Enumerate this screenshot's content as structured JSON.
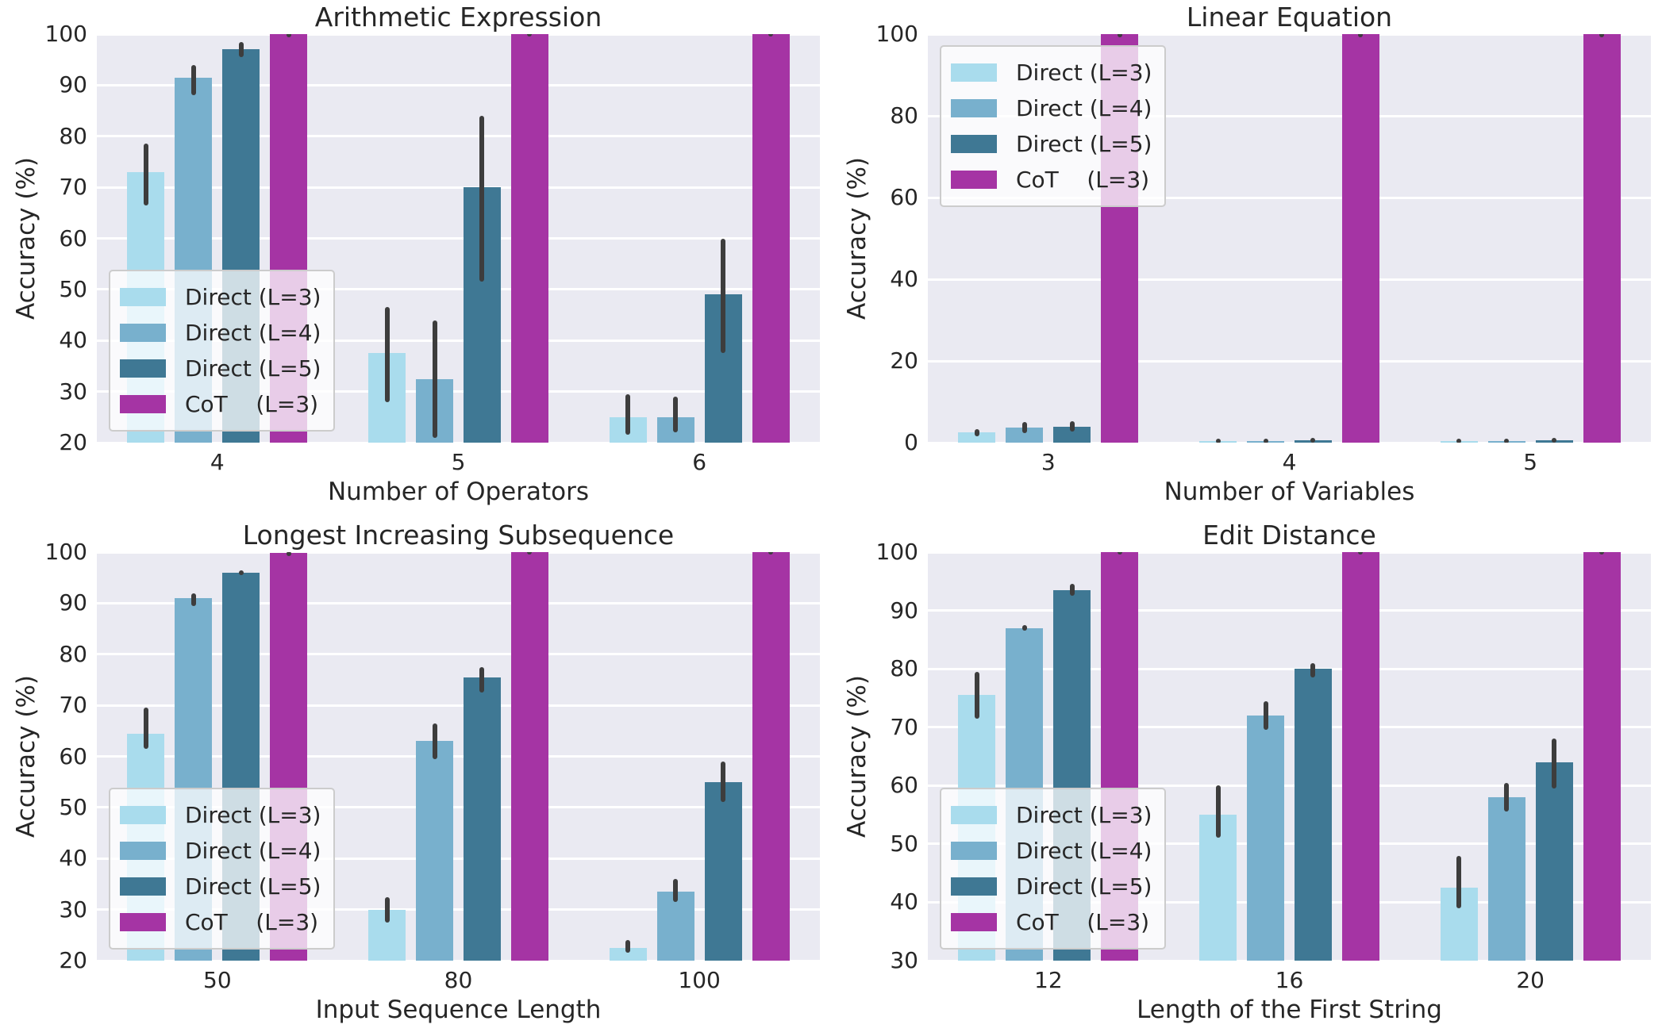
{
  "figure": {
    "background_color": "#ffffff",
    "plot_background_color": "#eaeaf2",
    "grid_color": "#ffffff",
    "text_color": "#262626",
    "errorbar_color": "#3d3d3d"
  },
  "legend": {
    "entries": [
      {
        "label": "Direct (L=3)",
        "color": "#a9dced"
      },
      {
        "label": "Direct (L=4)",
        "color": "#78b0cd"
      },
      {
        "label": "Direct (L=5)",
        "color": "#3f7894"
      },
      {
        "label": "CoT    (L=3)",
        "color": "#a534a4"
      }
    ]
  },
  "chart_data": [
    {
      "type": "bar",
      "title": "Arithmetic Expression",
      "xlabel": "Number of Operators",
      "ylabel": "Accuracy (%)",
      "categories": [
        "4",
        "5",
        "6"
      ],
      "ylim": [
        20,
        100
      ],
      "yticks": [
        20,
        30,
        40,
        50,
        60,
        70,
        80,
        90,
        100
      ],
      "grid": true,
      "legend_position": "lower-left",
      "series": [
        {
          "name": "Direct (L=3)",
          "color": "#a9dced",
          "values": [
            73,
            37.5,
            25
          ],
          "err": [
            [
              66.5,
              78.5
            ],
            [
              28,
              46.5
            ],
            [
              21.5,
              29.5
            ]
          ]
        },
        {
          "name": "Direct (L=4)",
          "color": "#78b0cd",
          "values": [
            91.5,
            32.5,
            25
          ],
          "err": [
            [
              88,
              94
            ],
            [
              21,
              44
            ],
            [
              22,
              29
            ]
          ]
        },
        {
          "name": "Direct (L=5)",
          "color": "#3f7894",
          "values": [
            97,
            70,
            49
          ],
          "err": [
            [
              95.5,
              98.5
            ],
            [
              51.5,
              84
            ],
            [
              37.5,
              60
            ]
          ]
        },
        {
          "name": "CoT    (L=3)",
          "color": "#a534a4",
          "values": [
            100,
            100,
            100
          ],
          "err": [
            [
              99.6,
              100
            ],
            [
              99.9,
              100
            ],
            [
              99.9,
              100
            ]
          ]
        }
      ]
    },
    {
      "type": "bar",
      "title": "Linear Equation",
      "xlabel": "Number of Variables",
      "ylabel": "Accuracy (%)",
      "categories": [
        "3",
        "4",
        "5"
      ],
      "ylim": [
        0,
        100
      ],
      "yticks": [
        0,
        20,
        40,
        60,
        80,
        100
      ],
      "grid": true,
      "legend_position": "upper-left",
      "series": [
        {
          "name": "Direct (L=3)",
          "color": "#a9dced",
          "values": [
            2.5,
            0.3,
            0.3
          ],
          "err": [
            [
              1.5,
              3.3
            ],
            [
              0.1,
              0.6
            ],
            [
              0.1,
              0.6
            ]
          ]
        },
        {
          "name": "Direct (L=4)",
          "color": "#78b0cd",
          "values": [
            3.6,
            0.3,
            0.3
          ],
          "err": [
            [
              2.4,
              5.1
            ],
            [
              0.1,
              0.6
            ],
            [
              0.1,
              0.6
            ]
          ]
        },
        {
          "name": "Direct (L=5)",
          "color": "#3f7894",
          "values": [
            3.9,
            0.5,
            0.5
          ],
          "err": [
            [
              2.8,
              5.3
            ],
            [
              0.2,
              0.9
            ],
            [
              0.2,
              0.9
            ]
          ]
        },
        {
          "name": "CoT    (L=3)",
          "color": "#a534a4",
          "values": [
            100,
            100,
            100
          ],
          "err": [
            [
              99.8,
              100
            ],
            [
              99.8,
              100
            ],
            [
              99.8,
              100
            ]
          ]
        }
      ]
    },
    {
      "type": "bar",
      "title": "Longest Increasing Subsequence",
      "xlabel": "Input Sequence Length",
      "ylabel": "Accuracy (%)",
      "categories": [
        "50",
        "80",
        "100"
      ],
      "ylim": [
        20,
        100
      ],
      "yticks": [
        20,
        30,
        40,
        50,
        60,
        70,
        80,
        90,
        100
      ],
      "grid": true,
      "legend_position": "lower-left",
      "series": [
        {
          "name": "Direct (L=3)",
          "color": "#a9dced",
          "values": [
            64.5,
            30,
            22.5
          ],
          "err": [
            [
              61.5,
              69.5
            ],
            [
              27.5,
              32.5
            ],
            [
              21.5,
              24
            ]
          ]
        },
        {
          "name": "Direct (L=4)",
          "color": "#78b0cd",
          "values": [
            91,
            63,
            33.5
          ],
          "err": [
            [
              89.5,
              92
            ],
            [
              59.5,
              66.5
            ],
            [
              31.5,
              36
            ]
          ]
        },
        {
          "name": "Direct (L=5)",
          "color": "#3f7894",
          "values": [
            96,
            75.5,
            55
          ],
          "err": [
            [
              95.5,
              96.5
            ],
            [
              72.5,
              77.5
            ],
            [
              51,
              59
            ]
          ]
        },
        {
          "name": "CoT    (L=3)",
          "color": "#a534a4",
          "values": [
            99.8,
            100,
            100
          ],
          "err": [
            [
              99.4,
              100
            ],
            [
              99.9,
              100
            ],
            [
              99.9,
              100
            ]
          ]
        }
      ]
    },
    {
      "type": "bar",
      "title": "Edit Distance",
      "xlabel": "Length of the First String",
      "ylabel": "Accuracy (%)",
      "categories": [
        "12",
        "16",
        "20"
      ],
      "ylim": [
        30,
        100
      ],
      "yticks": [
        30,
        40,
        50,
        60,
        70,
        80,
        90,
        100
      ],
      "grid": true,
      "legend_position": "lower-left",
      "series": [
        {
          "name": "Direct (L=3)",
          "color": "#a9dced",
          "values": [
            75.5,
            55,
            42.5
          ],
          "err": [
            [
              71.5,
              79.5
            ],
            [
              51,
              60
            ],
            [
              39,
              48
            ]
          ]
        },
        {
          "name": "Direct (L=4)",
          "color": "#78b0cd",
          "values": [
            87,
            72,
            58
          ],
          "err": [
            [
              86.5,
              87.5
            ],
            [
              69.5,
              74.5
            ],
            [
              55.5,
              60.5
            ]
          ]
        },
        {
          "name": "Direct (L=5)",
          "color": "#3f7894",
          "values": [
            93.5,
            80,
            64
          ],
          "err": [
            [
              92.5,
              94.5
            ],
            [
              78.5,
              81
            ],
            [
              59.5,
              68
            ]
          ]
        },
        {
          "name": "CoT    (L=3)",
          "color": "#a534a4",
          "values": [
            100,
            100,
            100
          ],
          "err": [
            [
              99.9,
              100
            ],
            [
              99.9,
              100
            ],
            [
              99.9,
              100
            ]
          ]
        }
      ]
    }
  ]
}
